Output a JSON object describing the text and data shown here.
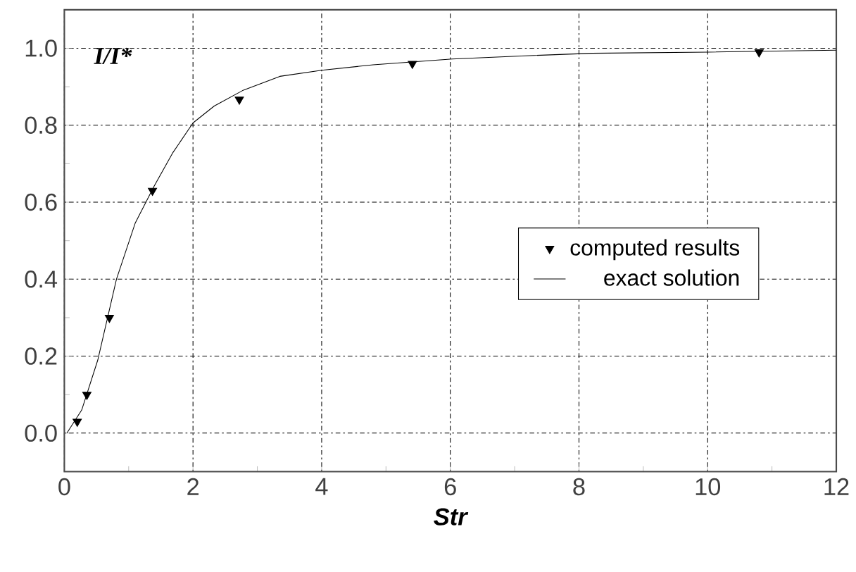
{
  "chart_data": {
    "type": "scatter",
    "xlabel": "Str",
    "ylabel": "I/I*",
    "xlim": [
      0,
      12
    ],
    "ylim": [
      -0.1,
      1.1
    ],
    "xticks": [
      0,
      2,
      4,
      6,
      8,
      10,
      12
    ],
    "yticks": [
      {
        "value": 0,
        "label": "0.0"
      },
      {
        "value": 0.2,
        "label": "0.2"
      },
      {
        "value": 0.4,
        "label": "0.4"
      },
      {
        "value": 0.6,
        "label": "0.6"
      },
      {
        "value": 0.8,
        "label": "0.8"
      },
      {
        "value": 1,
        "label": "1.0"
      }
    ],
    "grid": true,
    "legend": "right",
    "series": [
      {
        "name": "computed results",
        "color": "#000000",
        "marker": "triangle",
        "x": [
          0.2,
          0.35,
          0.7,
          1.37,
          2.72,
          5.41,
          10.8
        ],
        "values": [
          0.03,
          0.1,
          0.3,
          0.63,
          0.867,
          0.96,
          0.99
        ]
      },
      {
        "name": "exact solution",
        "type": "line",
        "color": "#000000",
        "marker": "none",
        "line_style": "solid",
        "x": [
          0.04,
          0.27,
          0.52,
          0.81,
          1.1,
          1.39,
          1.68,
          2.0,
          2.33,
          2.77,
          3.35,
          4.0,
          4.8,
          6.03,
          7.1,
          8.2,
          10,
          12
        ],
        "values": [
          0,
          0.06,
          0.19,
          0.4,
          0.545,
          0.64,
          0.727,
          0.806,
          0.85,
          0.89,
          0.927,
          0.943,
          0.957,
          0.972,
          0.98,
          0.987,
          0.99,
          0.995
        ]
      }
    ]
  }
}
